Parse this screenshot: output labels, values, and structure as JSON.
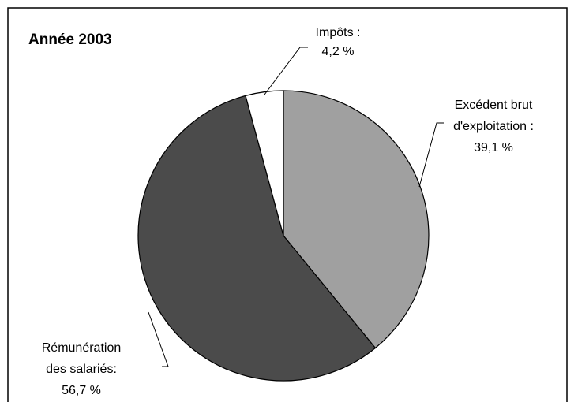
{
  "chart_data": {
    "type": "pie",
    "title": "Année 2003",
    "categories": [
      "Excédent brut d'exploitation :",
      "Rémunération des salariés:",
      "Impôts :"
    ],
    "values": [
      39.1,
      56.7,
      4.2
    ],
    "value_labels": [
      "39,1 %",
      "56,7 %",
      "4,2 %"
    ],
    "colors": [
      "#a0a0a0",
      "#4b4b4b",
      "#ffffff"
    ]
  }
}
